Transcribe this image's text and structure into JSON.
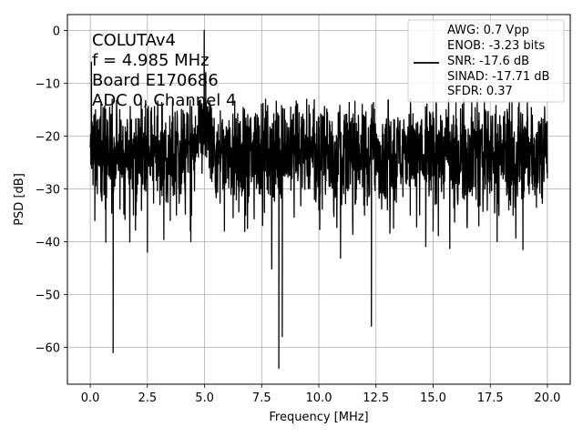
{
  "chart_data": {
    "type": "line",
    "xlabel": "Frequency [MHz]",
    "ylabel": "PSD [dB]",
    "xlim": [
      -1.0,
      21.0
    ],
    "ylim": [
      -67,
      3
    ],
    "xticks": [
      0.0,
      2.5,
      5.0,
      7.5,
      10.0,
      12.5,
      15.0,
      17.5,
      20.0
    ],
    "xtick_labels": [
      "0.0",
      "2.5",
      "5.0",
      "7.5",
      "10.0",
      "12.5",
      "15.0",
      "17.5",
      "20.0"
    ],
    "yticks": [
      0,
      -10,
      -20,
      -30,
      -40,
      -50,
      -60
    ],
    "ytick_labels": [
      "0",
      "−10",
      "−20",
      "−30",
      "−40",
      "−50",
      "−60"
    ],
    "grid": true,
    "legend_placement": "upper-right",
    "series": [
      {
        "color": "#000000",
        "x": [
          0.0,
          0.05,
          0.1,
          0.2,
          0.3,
          0.5,
          1.0,
          1.4,
          2.0,
          2.5,
          3.0,
          3.5,
          4.0,
          4.4,
          4.7,
          4.9,
          4.985,
          5.05,
          5.2,
          5.5,
          6.0,
          6.8,
          7.5,
          8.25,
          8.4,
          9.0,
          10.0,
          11.0,
          12.0,
          12.3,
          13.0,
          14.0,
          15.0,
          16.0,
          17.0,
          17.8,
          18.5,
          19.5,
          20.0
        ],
        "y": [
          -22,
          -6,
          -18,
          -36,
          -20,
          -32,
          -61,
          -22,
          -35,
          -42,
          -25,
          -36,
          -29,
          -40,
          -22,
          -15,
          0,
          -8,
          -26,
          -28,
          -24,
          -35,
          -30,
          -64,
          -58,
          -27,
          -34,
          -33,
          -35,
          -56,
          -34,
          -35,
          -38,
          -29,
          -37,
          -40,
          -35,
          -28,
          -27
        ]
      }
    ],
    "annotations": [
      "COLUTAv4",
      "f = 4.985 MHz",
      "Board E170686",
      "ADC 0, Channel 4"
    ],
    "legend": [
      "AWG: 0.7 Vpp",
      "ENOB: -3.23 bits",
      "SNR: -17.6 dB",
      "SINAD: -17.71 dB",
      "SFDR: 0.37"
    ]
  }
}
